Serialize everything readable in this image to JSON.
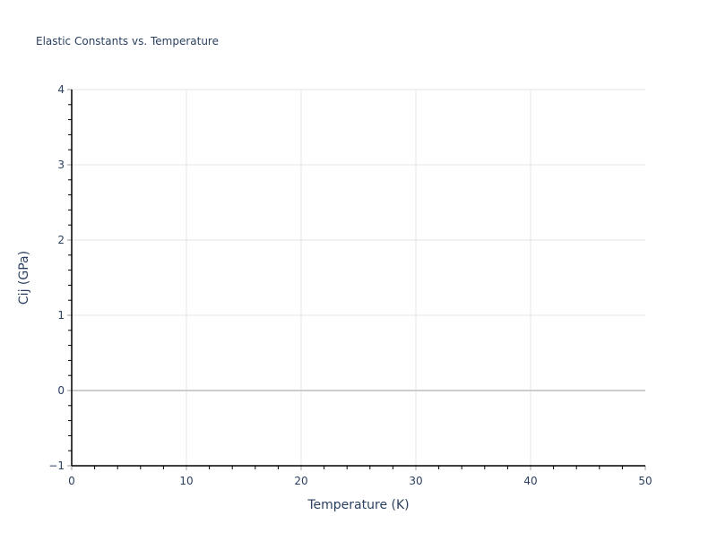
{
  "chart_data": {
    "type": "line",
    "title": "Elastic Constants vs. Temperature",
    "xlabel": "Temperature (K)",
    "ylabel": "Cij (GPa)",
    "xlim": [
      0,
      50
    ],
    "ylim": [
      -1,
      4
    ],
    "xticks": [
      "0",
      "10",
      "20",
      "30",
      "40",
      "50"
    ],
    "yticks": [
      "−1",
      "0",
      "1",
      "2",
      "3",
      "4"
    ],
    "grid": true,
    "series": []
  }
}
